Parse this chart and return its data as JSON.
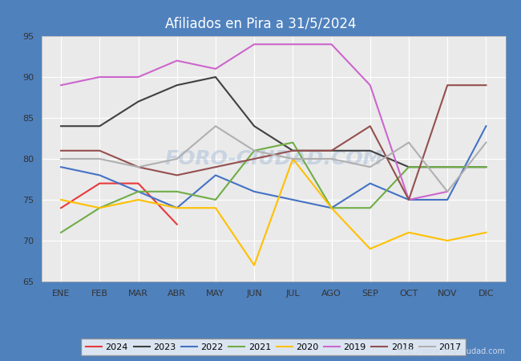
{
  "title": "Afiliados en Pira a 31/5/2024",
  "header_color": "#4f81bd",
  "plot_bg_color": "#eaeaea",
  "fig_bg_color": "#4f81bd",
  "xlim_min": -0.5,
  "xlim_max": 11.5,
  "ylim_min": 65,
  "ylim_max": 95,
  "yticks": [
    65,
    70,
    75,
    80,
    85,
    90,
    95
  ],
  "xtick_labels": [
    "ENE",
    "FEB",
    "MAR",
    "ABR",
    "MAY",
    "JUN",
    "JUL",
    "AGO",
    "SEP",
    "OCT",
    "NOV",
    "DIC"
  ],
  "watermark": "FORO-CIUDAD.COM",
  "url": "http://www.foro-ciudad.com",
  "series": {
    "2024": {
      "color": "#e8393c",
      "values": [
        74,
        77,
        77,
        72,
        null,
        null,
        null,
        null,
        null,
        null,
        null,
        null
      ]
    },
    "2023": {
      "color": "#404040",
      "values": [
        84,
        84,
        87,
        89,
        90,
        84,
        81,
        81,
        81,
        79,
        79,
        79
      ]
    },
    "2022": {
      "color": "#4472c4",
      "values": [
        79,
        78,
        76,
        74,
        78,
        76,
        75,
        74,
        77,
        75,
        75,
        84
      ]
    },
    "2021": {
      "color": "#70ad47",
      "values": [
        71,
        74,
        76,
        76,
        75,
        81,
        82,
        74,
        74,
        79,
        79,
        79
      ]
    },
    "2020": {
      "color": "#ffc000",
      "values": [
        75,
        74,
        75,
        74,
        74,
        67,
        80,
        74,
        69,
        71,
        70,
        71
      ]
    },
    "2019": {
      "color": "#cc66cc",
      "values": [
        89,
        90,
        90,
        92,
        91,
        94,
        94,
        94,
        89,
        75,
        76,
        null
      ]
    },
    "2018": {
      "color": "#954f4f",
      "values": [
        81,
        81,
        79,
        78,
        79,
        80,
        81,
        81,
        84,
        75,
        89,
        89
      ]
    },
    "2017": {
      "color": "#b0b0b0",
      "values": [
        80,
        80,
        79,
        80,
        84,
        81,
        80,
        80,
        79,
        82,
        76,
        82
      ]
    }
  },
  "legend_order": [
    "2024",
    "2023",
    "2022",
    "2021",
    "2020",
    "2019",
    "2018",
    "2017"
  ]
}
